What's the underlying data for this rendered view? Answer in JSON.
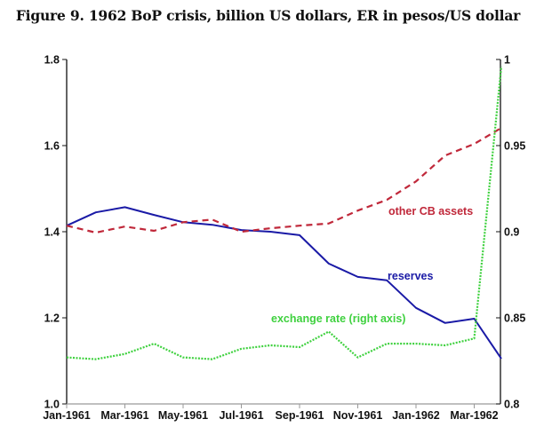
{
  "chart_data": {
    "type": "line",
    "title": "Figure 9. 1962 BoP crisis, billion US dollars, ER in pesos/US dollar",
    "xlabel": "",
    "ylabel": "",
    "x": [
      "Jan-1961",
      "Feb-1961",
      "Mar-1961",
      "Apr-1961",
      "May-1961",
      "Jun-1961",
      "Jul-1961",
      "Aug-1961",
      "Sep-1961",
      "Oct-1961",
      "Nov-1961",
      "Dec-1961",
      "Jan-1962",
      "Feb-1962",
      "Mar-1962",
      "Apr-1962"
    ],
    "x_tick_labels": [
      "Jan-1961",
      "Mar-1961",
      "May-1961",
      "Jul-1961",
      "Sep-1961",
      "Nov-1961",
      "Jan-1962",
      "Mar-1962"
    ],
    "y_left": {
      "ylim": [
        1.0,
        1.8
      ],
      "ticks": [
        "1.0",
        "1.2",
        "1.4",
        "1.6",
        "1.8"
      ]
    },
    "y_right": {
      "ylim": [
        0.8,
        1.0
      ],
      "ticks": [
        "0.8",
        "0.85",
        "0.9",
        "0.95",
        "1"
      ]
    },
    "grid": false,
    "series": [
      {
        "name": "reserves",
        "label": "reserves",
        "axis": "left",
        "color": "#1a1aa6",
        "style": "solid",
        "values": [
          1.414,
          1.445,
          1.457,
          1.439,
          1.422,
          1.416,
          1.404,
          1.4,
          1.392,
          1.326,
          1.295,
          1.287,
          1.223,
          1.188,
          1.198,
          1.105
        ]
      },
      {
        "name": "other CB assets",
        "label": "other CB assets",
        "axis": "left",
        "color": "#c0283a",
        "style": "dashed",
        "values": [
          1.414,
          1.398,
          1.412,
          1.402,
          1.422,
          1.428,
          1.4,
          1.408,
          1.414,
          1.419,
          1.449,
          1.474,
          1.517,
          1.577,
          1.604,
          1.641
        ]
      },
      {
        "name": "exchange rate",
        "label": "exchange rate (right axis)",
        "axis": "right",
        "color": "#3fd13f",
        "style": "dotted",
        "values": [
          0.827,
          0.826,
          0.829,
          0.835,
          0.827,
          0.826,
          0.832,
          0.834,
          0.833,
          0.842,
          0.827,
          0.835,
          0.835,
          0.834,
          0.838,
          0.996
        ]
      }
    ]
  }
}
